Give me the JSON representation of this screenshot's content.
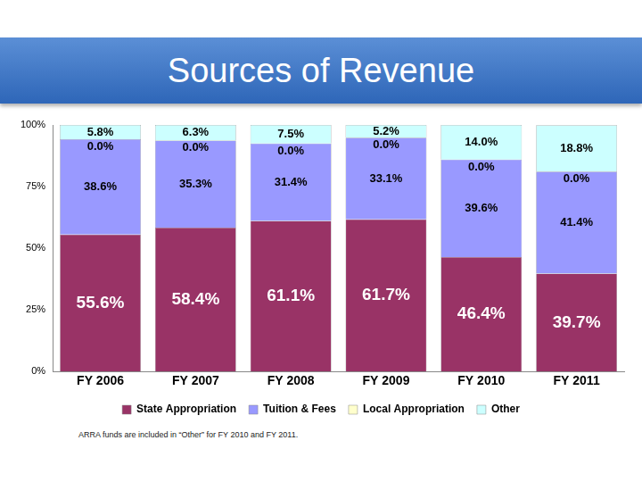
{
  "chart_data": {
    "type": "bar",
    "title": "Sources of Revenue",
    "categories": [
      "FY 2006",
      "FY 2007",
      "FY 2008",
      "FY 2009",
      "FY 2010",
      "FY 2011"
    ],
    "series": [
      {
        "name": "State Appropriation",
        "color": "#993366",
        "values": [
          55.6,
          58.4,
          61.1,
          61.7,
          46.4,
          39.7
        ],
        "value_labels": [
          "55.6%",
          "58.4%",
          "61.1%",
          "61.7%",
          "46.4%",
          "39.7%"
        ]
      },
      {
        "name": "Tuition & Fees",
        "color": "#9999ff",
        "values": [
          38.6,
          35.3,
          31.4,
          33.1,
          39.6,
          41.4
        ],
        "value_labels": [
          "38.6%",
          "35.3%",
          "31.4%",
          "33.1%",
          "39.6%",
          "41.4%"
        ]
      },
      {
        "name": "Local Appropriation",
        "color": "#ffffcc",
        "values": [
          0.0,
          0.0,
          0.0,
          0.0,
          0.0,
          0.0
        ],
        "value_labels": [
          "0.0%",
          "0.0%",
          "0.0%",
          "0.0%",
          "0.0%",
          "0.0%"
        ]
      },
      {
        "name": "Other",
        "color": "#ccffff",
        "values": [
          5.8,
          6.3,
          7.5,
          5.2,
          14.0,
          18.8
        ],
        "value_labels": [
          "5.8%",
          "6.3%",
          "7.5%",
          "5.2%",
          "14.0%",
          "18.8%"
        ]
      }
    ],
    "ylim": [
      0,
      100
    ],
    "yticks": [
      {
        "value": 0,
        "label": "0%"
      },
      {
        "value": 25,
        "label": "25%"
      },
      {
        "value": 50,
        "label": "50%"
      },
      {
        "value": 75,
        "label": "75%"
      },
      {
        "value": 100,
        "label": "100%"
      }
    ],
    "stacked": true,
    "grid": false,
    "legend": "bottom",
    "data_labels": true,
    "annotations": [
      "ARRA funds are included in “Other” for FY 2010 and FY 2011."
    ]
  }
}
